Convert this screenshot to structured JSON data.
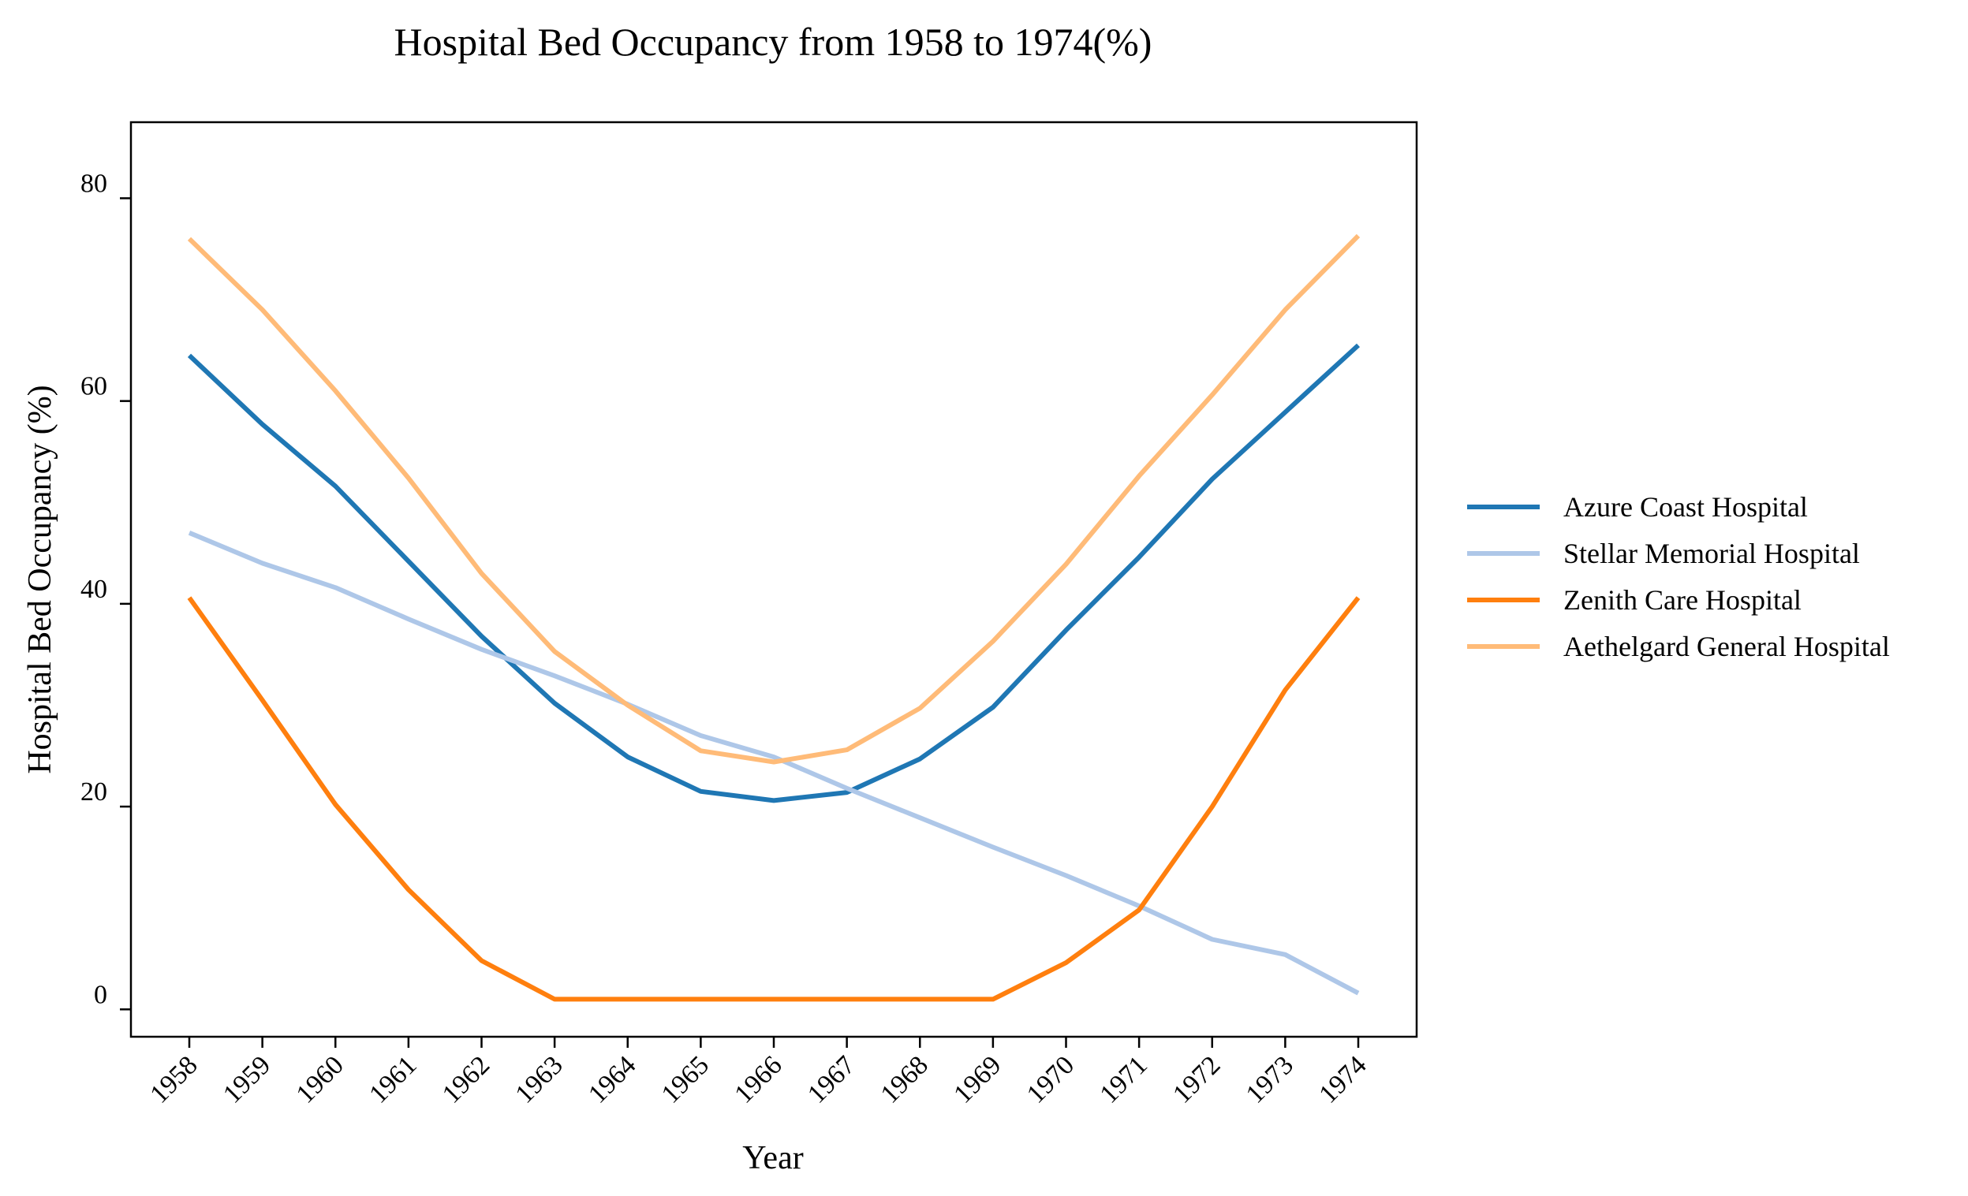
{
  "chart_data": {
    "type": "line",
    "title": "Hospital Bed Occupancy from 1958 to 1974(%)",
    "xlabel": "Year",
    "ylabel": "Hospital Bed Occupancy (%)",
    "x": [
      "1958",
      "1959",
      "1960",
      "1961",
      "1962",
      "1963",
      "1964",
      "1965",
      "1966",
      "1967",
      "1968",
      "1969",
      "1970",
      "1971",
      "1972",
      "1973",
      "1974"
    ],
    "yticks": [
      0,
      20,
      40,
      60,
      80
    ],
    "ylim": [
      -2.7,
      87.5
    ],
    "grid": false,
    "legend_position": "right",
    "series": [
      {
        "name": "Azure Coast Hospital",
        "color": "#1f77b4",
        "values": [
          64.5,
          57.7,
          51.6,
          44.2,
          36.8,
          30.2,
          24.9,
          21.5,
          20.6,
          21.4,
          24.7,
          29.8,
          37.4,
          44.6,
          52.3,
          58.9,
          65.5
        ]
      },
      {
        "name": "Stellar Memorial Hospital",
        "color": "#aec7e8",
        "values": [
          47.0,
          44.0,
          41.6,
          38.5,
          35.5,
          32.9,
          30.1,
          27.0,
          24.9,
          21.8,
          18.9,
          16.0,
          13.2,
          10.2,
          6.9,
          5.4,
          1.6
        ]
      },
      {
        "name": "Zenith Care Hospital",
        "color": "#ff7f0e",
        "values": [
          40.6,
          30.5,
          20.2,
          11.8,
          4.8,
          1.0,
          1.0,
          1.0,
          1.0,
          1.0,
          1.0,
          1.0,
          4.6,
          9.8,
          20.0,
          31.5,
          40.6
        ]
      },
      {
        "name": "Aethelgard General Hospital",
        "color": "#ffbb78",
        "values": [
          76.0,
          69.0,
          61.0,
          52.4,
          43.0,
          35.3,
          30.0,
          25.5,
          24.4,
          25.6,
          29.7,
          36.3,
          43.9,
          52.6,
          60.6,
          69.0,
          76.3
        ]
      }
    ]
  }
}
